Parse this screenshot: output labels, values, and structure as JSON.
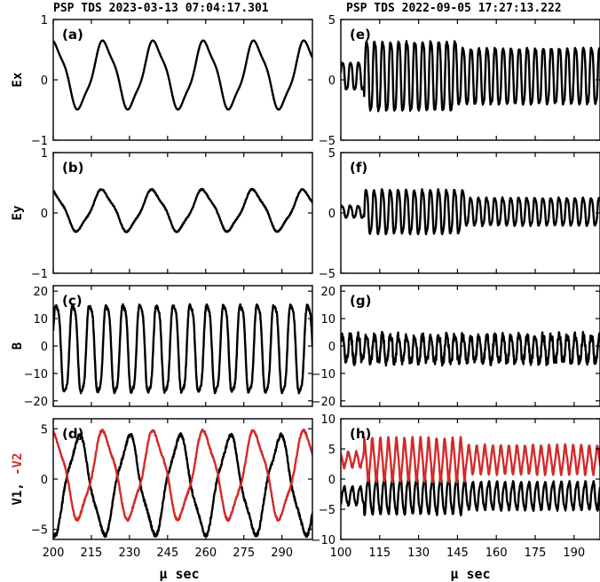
{
  "header_left": "PSP TDS 2023-03-13 07:04:17.301",
  "header_right": "PSP TDS 2022-09-05 17:27:13.222",
  "colors": {
    "black": "#000000",
    "red": "#d42a2a"
  },
  "chart_data": [
    {
      "id": "a",
      "type": "line",
      "label": "(a)",
      "ylabel": "Ex",
      "ylim": [
        -1,
        1
      ],
      "yticks": [
        -1,
        0,
        1
      ],
      "xlim": [
        200,
        302
      ],
      "xticks": [
        200,
        215,
        230,
        245,
        260,
        275,
        290
      ],
      "series": [
        {
          "color": "#000000",
          "offset": 0.08,
          "segments": [
            {
              "amp": 0.53,
              "period": 19.8,
              "phase": 1.5,
              "n": 0
            }
          ]
        }
      ]
    },
    {
      "id": "b",
      "type": "line",
      "label": "(b)",
      "ylabel": "Ey",
      "ylim": [
        -1,
        1
      ],
      "yticks": [
        -1,
        0,
        1
      ],
      "xlim": [
        200,
        302
      ],
      "xticks": [
        200,
        215,
        230,
        245,
        260,
        275,
        290
      ],
      "series": [
        {
          "color": "#000000",
          "offset": 0.04,
          "segments": [
            {
              "amp": 0.32,
              "period": 19.8,
              "phase": 1.7,
              "n": 0.02
            }
          ]
        }
      ]
    },
    {
      "id": "c",
      "type": "line",
      "label": "(c)",
      "ylabel": "B",
      "ylim": [
        -22,
        22
      ],
      "yticks": [
        -20,
        -10,
        0,
        10,
        20
      ],
      "xlim": [
        200,
        302
      ],
      "xticks": [
        200,
        215,
        230,
        245,
        260,
        275,
        290
      ],
      "series": [
        {
          "color": "#000000",
          "offset": -1,
          "segments": [
            {
              "amp": 17,
              "period": 6.6,
              "phase": 0.3,
              "n": 1.2
            }
          ]
        }
      ]
    },
    {
      "id": "d",
      "type": "line",
      "label": "(d)",
      "ylabel": "V1,",
      "ylabel2": "-V2",
      "ylim": [
        -6,
        6
      ],
      "yticks": [
        -5,
        0,
        5
      ],
      "xlim": [
        200,
        302
      ],
      "xticks": [
        200,
        215,
        230,
        245,
        260,
        275,
        290
      ],
      "series": [
        {
          "name": "V1",
          "color": "#000000",
          "offset": -0.6,
          "segments": [
            {
              "amp": 4.6,
              "period": 19.8,
              "phase": -1.6,
              "n": 0.35
            }
          ]
        },
        {
          "name": "-V2",
          "color": "#d42a2a",
          "offset": 0.4,
          "segments": [
            {
              "amp": 4.1,
              "period": 19.8,
              "phase": 1.55,
              "n": 0.25
            }
          ]
        }
      ]
    },
    {
      "id": "e",
      "type": "line",
      "label": "(e)",
      "ylabel": "",
      "ylim": [
        -5,
        5
      ],
      "yticks": [
        -5,
        0,
        5
      ],
      "xlim": [
        100,
        200
      ],
      "xticks": [
        100,
        115,
        130,
        145,
        160,
        175,
        190
      ],
      "series": [
        {
          "color": "#000000",
          "offset": 0.3,
          "segments": [
            {
              "amp": 1.2,
              "period": 3.1,
              "phase": 0.2,
              "n": 0.1,
              "x_end": 109
            },
            {
              "amp": 3.1,
              "period": 3.1,
              "phase": 0.2,
              "n": 0.2,
              "x_end": 145
            },
            {
              "amp": 2.5,
              "period": 3.1,
              "phase": 0.2,
              "n": 0.2,
              "x_end": 200
            }
          ]
        }
      ]
    },
    {
      "id": "f",
      "type": "line",
      "label": "(f)",
      "ylabel": "",
      "ylim": [
        -5,
        5
      ],
      "yticks": [
        -5,
        0,
        5
      ],
      "xlim": [
        100,
        200
      ],
      "xticks": [
        100,
        115,
        130,
        145,
        160,
        175,
        190
      ],
      "series": [
        {
          "color": "#000000",
          "offset": 0.1,
          "segments": [
            {
              "amp": 0.5,
              "period": 3.1,
              "phase": 0.5,
              "n": 0.1,
              "x_end": 109
            },
            {
              "amp": 1.9,
              "period": 3.1,
              "phase": 0.5,
              "n": 0.15,
              "x_end": 148
            },
            {
              "amp": 1.2,
              "period": 3.1,
              "phase": 0.5,
              "n": 0.1,
              "x_end": 200
            }
          ]
        }
      ]
    },
    {
      "id": "g",
      "type": "line",
      "label": "(g)",
      "ylabel": "",
      "ylim": [
        -22,
        22
      ],
      "yticks": [
        -20,
        -10,
        0,
        10,
        20
      ],
      "xlim": [
        100,
        200
      ],
      "xticks": [
        100,
        115,
        130,
        145,
        160,
        175,
        190
      ],
      "series": [
        {
          "color": "#000000",
          "offset": -1,
          "segments": [
            {
              "amp": 5,
              "period": 3.1,
              "phase": 0.4,
              "n": 3,
              "x_end": 200
            }
          ]
        }
      ]
    },
    {
      "id": "h",
      "type": "line",
      "label": "(h)",
      "ylabel": "",
      "ylim": [
        -10,
        10
      ],
      "yticks": [
        -10,
        -5,
        0,
        5,
        10
      ],
      "xlim": [
        100,
        200
      ],
      "xticks": [
        100,
        115,
        130,
        145,
        160,
        175,
        190
      ],
      "xlabel": "μ sec",
      "series": [
        {
          "name": "V1",
          "color": "#000000",
          "offset": -2.8,
          "segments": [
            {
              "amp": 1.5,
              "period": 3.1,
              "phase": -1.0,
              "n": 0.3,
              "x_end": 109
            },
            {
              "amp": 3.0,
              "period": 3.1,
              "phase": -1.0,
              "n": 0.4,
              "x_end": 148
            },
            {
              "amp": 2.3,
              "period": 3.1,
              "phase": -1.0,
              "n": 0.3,
              "x_end": 200
            }
          ]
        },
        {
          "name": "-V2",
          "color": "#d42a2a",
          "offset": 3.2,
          "segments": [
            {
              "amp": 1.2,
              "period": 3.1,
              "phase": 2.0,
              "n": 0.3,
              "x_end": 109
            },
            {
              "amp": 3.3,
              "period": 3.1,
              "phase": 2.0,
              "n": 0.3,
              "x_end": 148
            },
            {
              "amp": 2.2,
              "period": 3.1,
              "phase": 2.0,
              "n": 0.3,
              "x_end": 200
            }
          ]
        }
      ]
    }
  ],
  "xlabel_left": "μ sec",
  "xlabel_right": "μ sec"
}
